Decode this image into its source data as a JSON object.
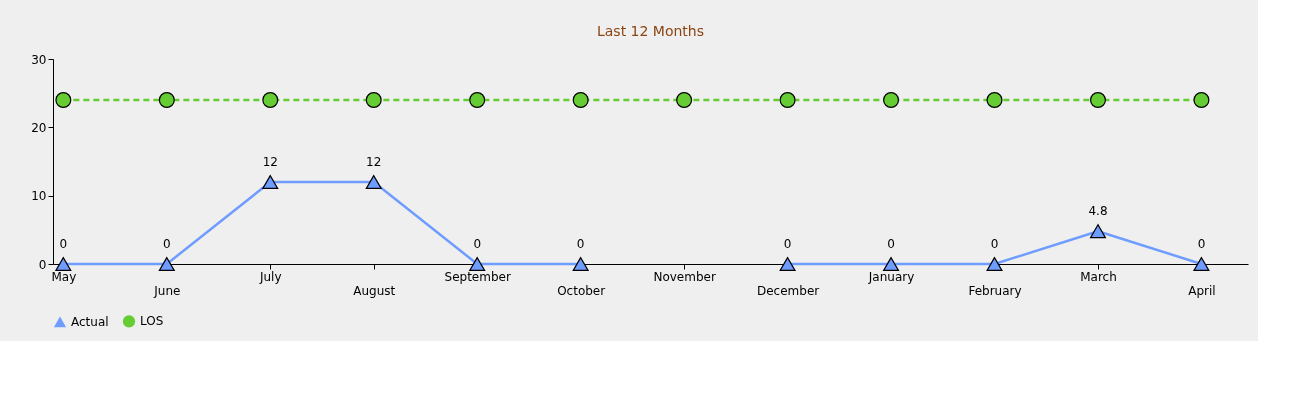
{
  "chart_data": {
    "type": "line",
    "title": "Last 12 Months",
    "categories": [
      "May",
      "June",
      "July",
      "August",
      "September",
      "October",
      "November",
      "December",
      "January",
      "February",
      "March",
      "April"
    ],
    "series": [
      {
        "name": "Actual",
        "color": "#6f9cff",
        "marker": "triangle",
        "line_style": "solid",
        "values": [
          0,
          0,
          12,
          12,
          0,
          0,
          null,
          0,
          0,
          0,
          4.8,
          0
        ],
        "value_labels": [
          "0",
          "0",
          "12",
          "12",
          "0",
          "0",
          null,
          "0",
          "0",
          "0",
          "4.8",
          "0"
        ]
      },
      {
        "name": "LOS",
        "color": "#66cc33",
        "marker": "circle",
        "line_style": "dashed",
        "values": [
          24,
          24,
          24,
          24,
          24,
          24,
          24,
          24,
          24,
          24,
          24,
          24
        ]
      }
    ],
    "ylim": [
      0,
      30
    ],
    "yticks": [
      0,
      10,
      20,
      30
    ],
    "grid": false,
    "legend": "bottom"
  }
}
